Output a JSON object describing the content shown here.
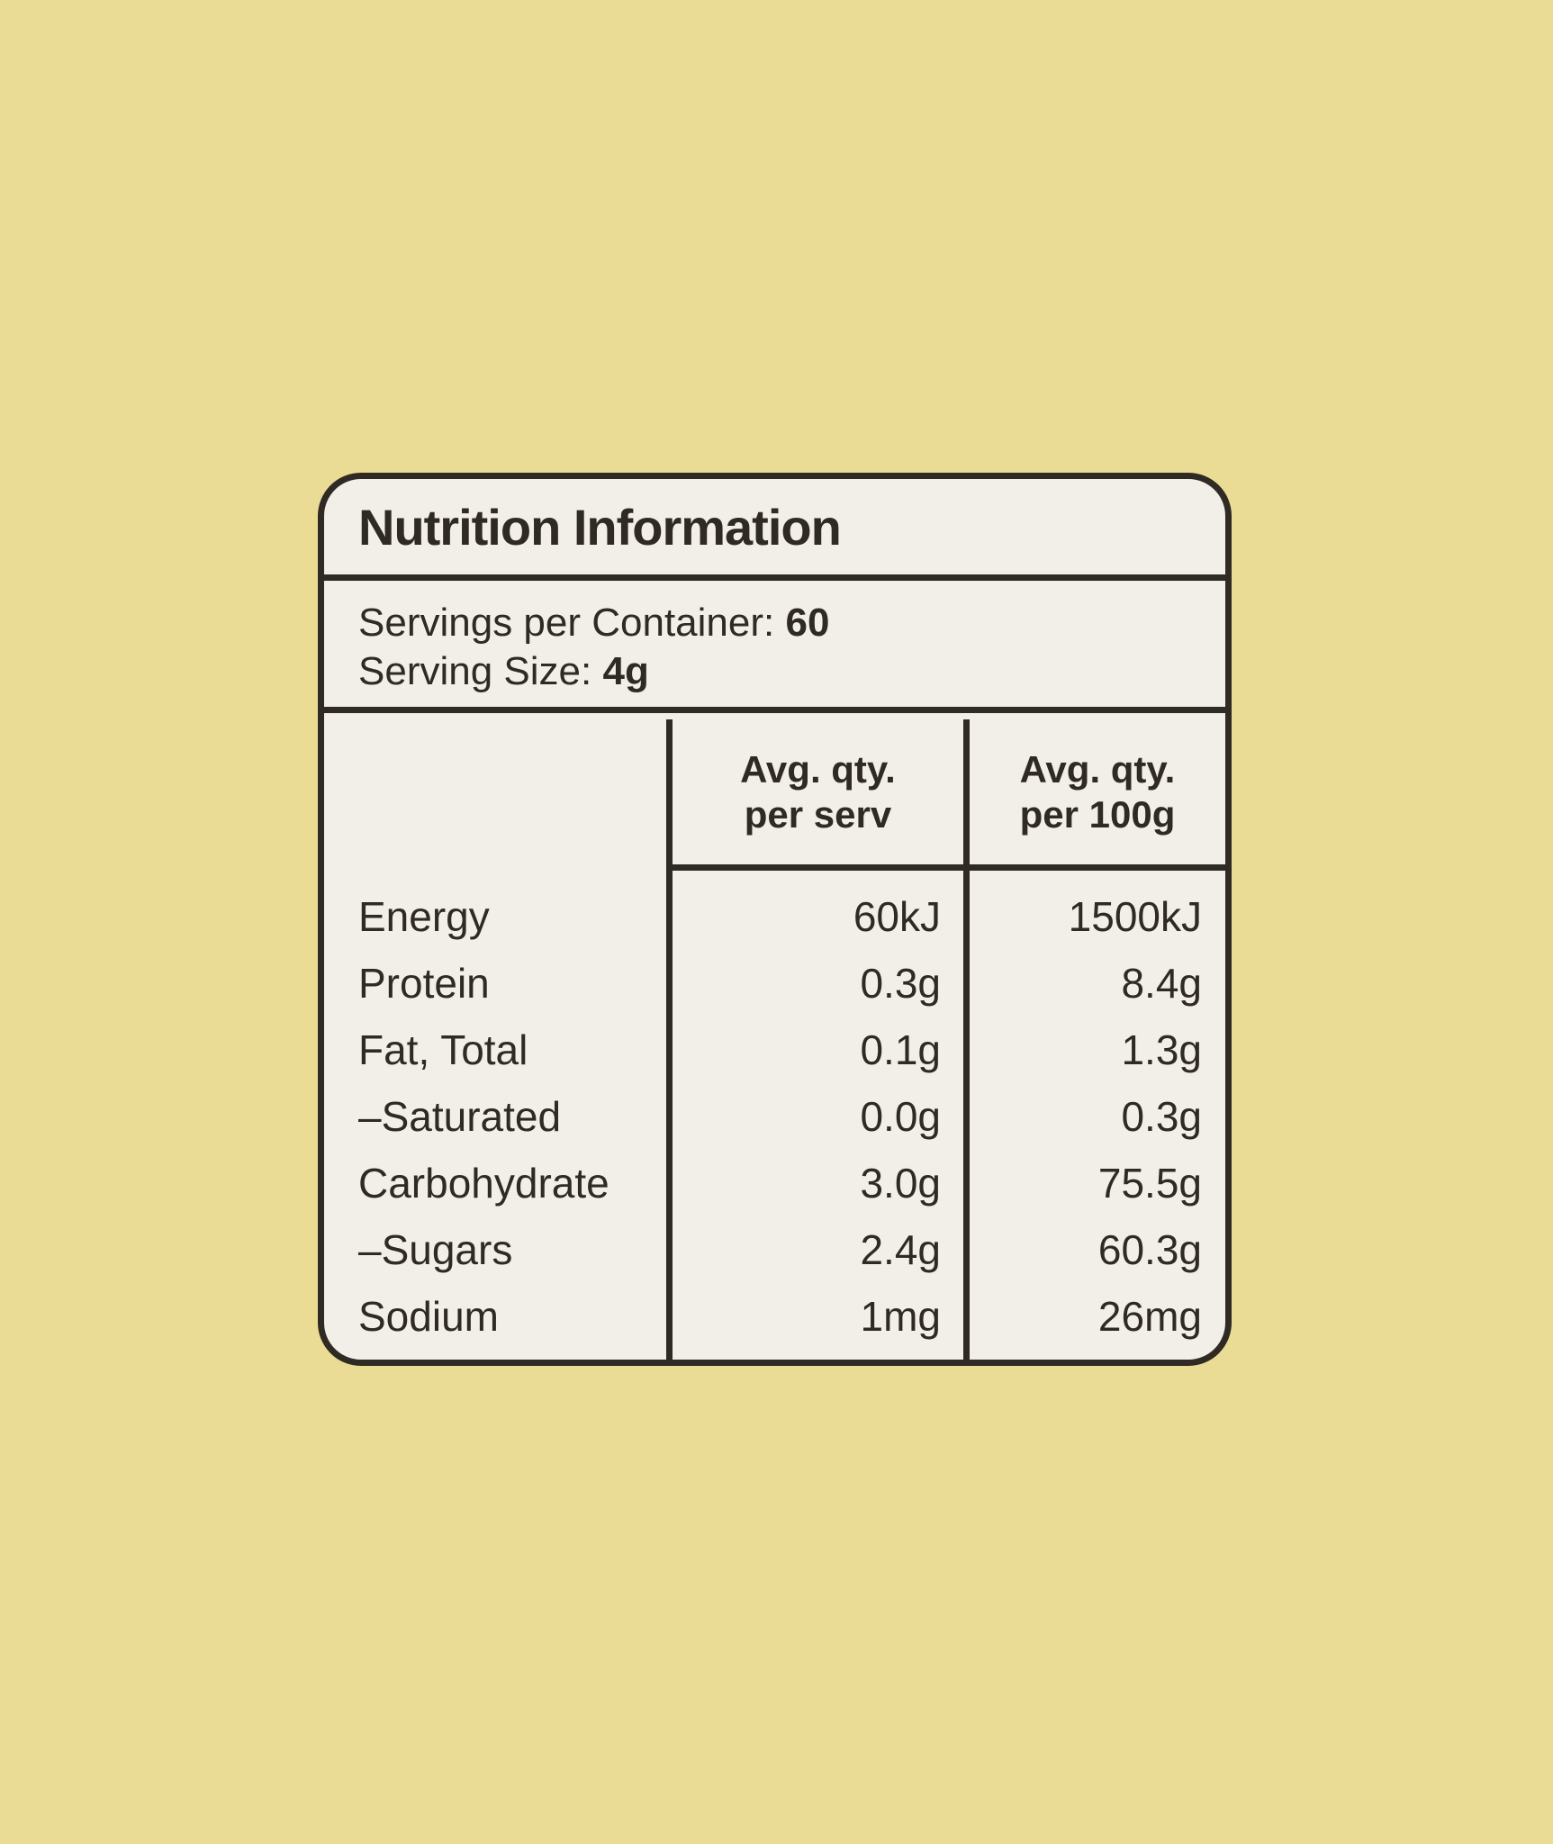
{
  "colors": {
    "page_background": "#ebdc95",
    "card_background": "#f2efe9",
    "ink": "#2f2a23"
  },
  "label": {
    "title": "Nutrition Information",
    "servings_per_container_label": "Servings per Container: ",
    "servings_per_container_value": "60",
    "serving_size_label": "Serving Size: ",
    "serving_size_value": "4g",
    "col_serv_line1": "Avg. qty.",
    "col_serv_line2": "per serv",
    "col_100g_line1": "Avg. qty.",
    "col_100g_line2": "per 100g",
    "rows": [
      {
        "name": "Energy",
        "per_serv": "60kJ",
        "per_100g": "1500kJ"
      },
      {
        "name": "Protein",
        "per_serv": "0.3g",
        "per_100g": "8.4g"
      },
      {
        "name": "Fat, Total",
        "per_serv": "0.1g",
        "per_100g": "1.3g"
      },
      {
        "name": "–Saturated",
        "per_serv": "0.0g",
        "per_100g": "0.3g"
      },
      {
        "name": "Carbohydrate",
        "per_serv": "3.0g",
        "per_100g": "75.5g"
      },
      {
        "name": "–Sugars",
        "per_serv": "2.4g",
        "per_100g": "60.3g"
      },
      {
        "name": "Sodium",
        "per_serv": "1mg",
        "per_100g": "26mg"
      }
    ]
  }
}
